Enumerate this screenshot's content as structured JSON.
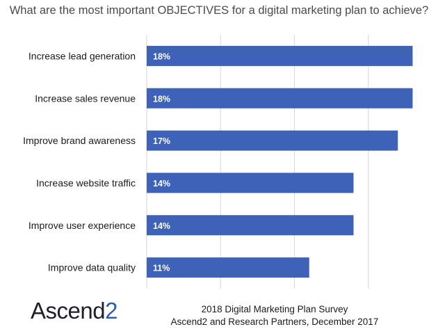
{
  "chart_data": {
    "type": "bar",
    "orientation": "horizontal",
    "title": "What are the most important OBJECTIVES for a digital marketing plan to achieve?",
    "categories": [
      "Increase lead generation",
      "Increase sales revenue",
      "Improve brand awareness",
      "Increase website traffic",
      "Improve user experience",
      "Improve data quality"
    ],
    "values": [
      18,
      18,
      17,
      14,
      14,
      11
    ],
    "value_labels": [
      "18%",
      "18%",
      "17%",
      "14%",
      "14%",
      "11%"
    ],
    "xlim": [
      0,
      20
    ],
    "grid": true,
    "bar_color": "#3d62b8"
  },
  "footer": {
    "logo_main": "Ascend",
    "logo_accent": "2",
    "source_line1": "2018 Digital Marketing Plan Survey",
    "source_line2": "Ascend2 and Research Partners, December 2017"
  }
}
